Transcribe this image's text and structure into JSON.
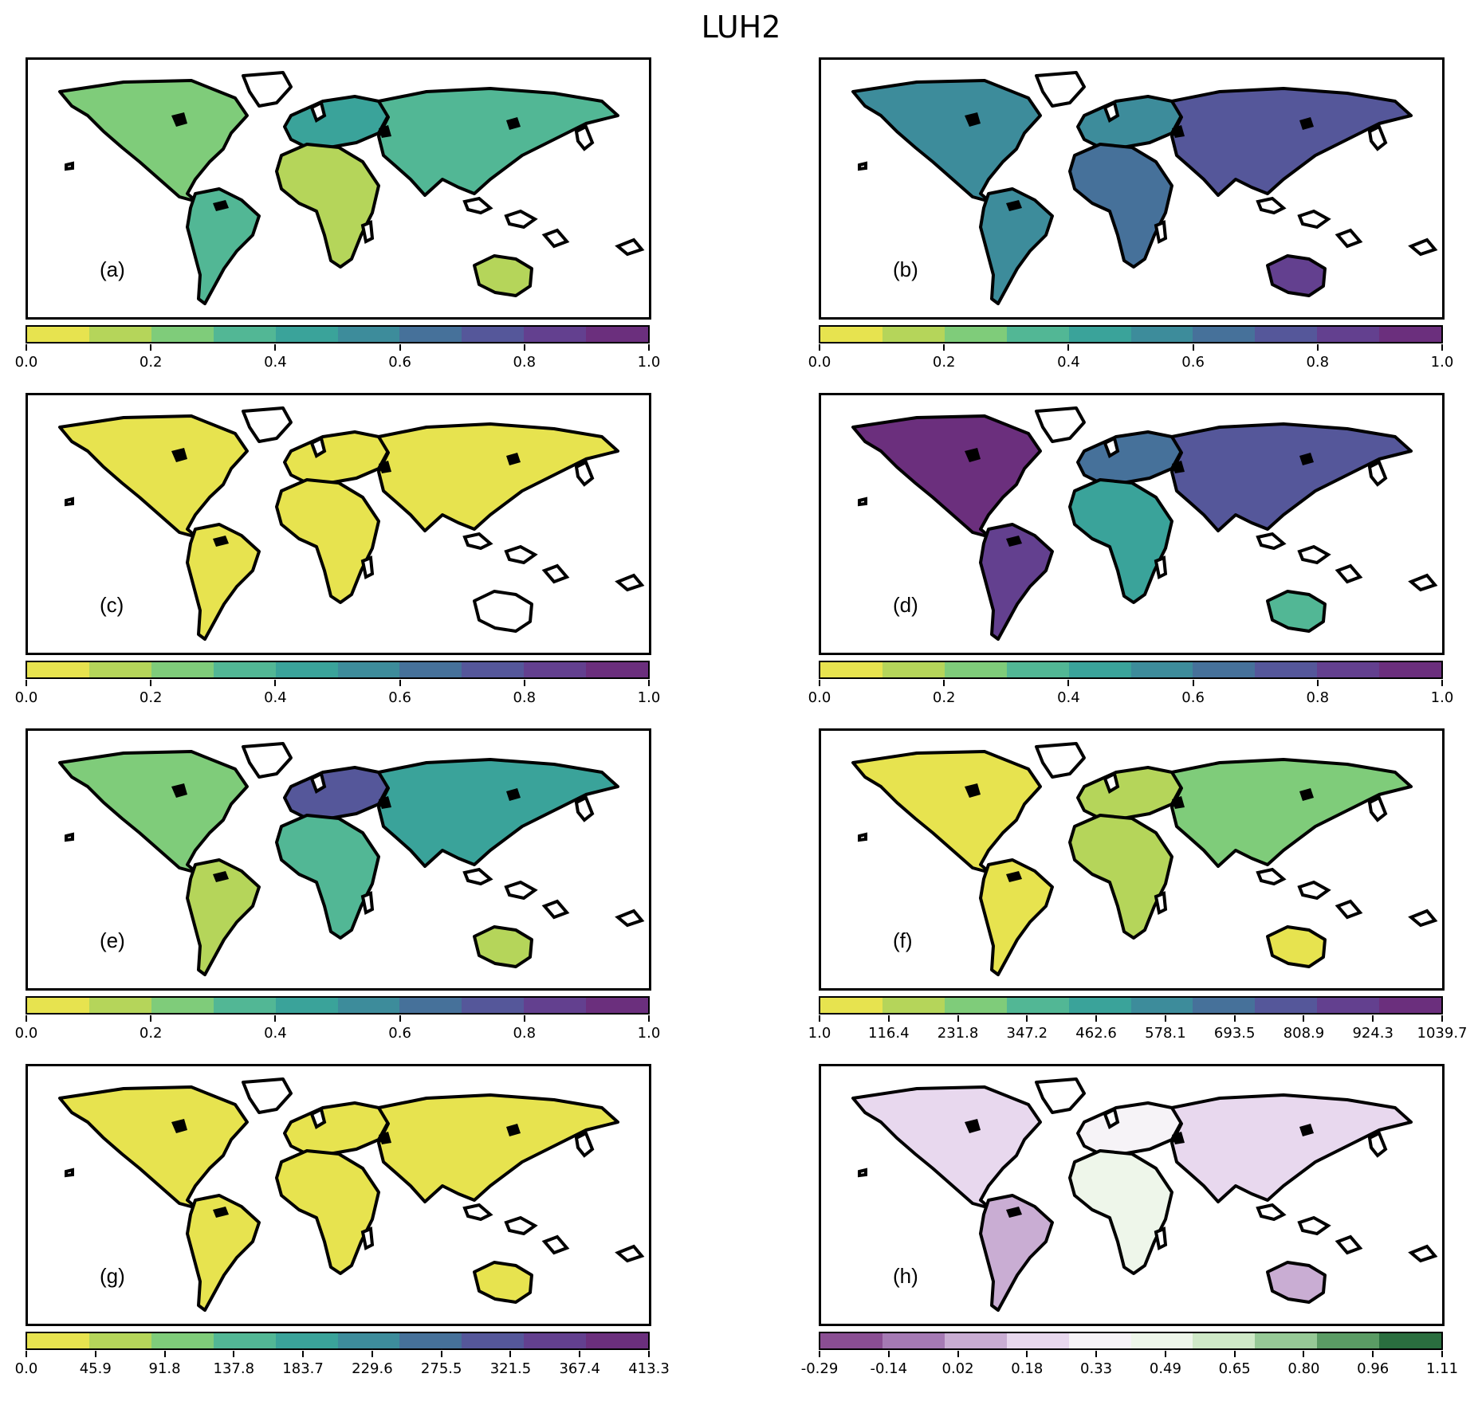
{
  "title": "LUH2",
  "palettes": {
    "viridis_r": [
      "#e7e34f",
      "#b5d55a",
      "#7fcc7a",
      "#52b795",
      "#3aa39a",
      "#3d8c9b",
      "#46719a",
      "#55579a",
      "#63408f",
      "#6b2f7d"
    ],
    "prgn": [
      "#8a4e93",
      "#a57ab4",
      "#c9add3",
      "#e8d8ee",
      "#f6f3f7",
      "#eef6ea",
      "#cfe9c7",
      "#96c996",
      "#5a9b64",
      "#2a6e3f"
    ]
  },
  "panels": [
    {
      "label": "(a)",
      "palette": "viridis_r",
      "ticks": [
        "0.0",
        "0.2",
        "0.4",
        "0.6",
        "0.8",
        "1.0"
      ],
      "tick_positions": [
        0,
        0.2,
        0.4,
        0.6,
        0.8,
        1.0
      ],
      "fill": {
        "NA": 2,
        "SA": 3,
        "EU": 4,
        "AF": 1,
        "AS": 3,
        "AU": 1
      }
    },
    {
      "label": "(b)",
      "palette": "viridis_r",
      "ticks": [
        "0.0",
        "0.2",
        "0.4",
        "0.6",
        "0.8",
        "1.0"
      ],
      "tick_positions": [
        0,
        0.2,
        0.4,
        0.6,
        0.8,
        1.0
      ],
      "fill": {
        "NA": 5,
        "SA": 5,
        "EU": 5,
        "AF": 6,
        "AS": 7,
        "AU": 8
      }
    },
    {
      "label": "(c)",
      "palette": "viridis_r",
      "ticks": [
        "0.0",
        "0.2",
        "0.4",
        "0.6",
        "0.8",
        "1.0"
      ],
      "tick_positions": [
        0,
        0.2,
        0.4,
        0.6,
        0.8,
        1.0
      ],
      "fill": {
        "NA": 0,
        "SA": 0,
        "EU": 0,
        "AF": 0,
        "AS": 0,
        "AU": -1
      }
    },
    {
      "label": "(d)",
      "palette": "viridis_r",
      "ticks": [
        "0.0",
        "0.2",
        "0.4",
        "0.6",
        "0.8",
        "1.0"
      ],
      "tick_positions": [
        0,
        0.2,
        0.4,
        0.6,
        0.8,
        1.0
      ],
      "fill": {
        "NA": 9,
        "SA": 8,
        "EU": 6,
        "AF": 4,
        "AS": 7,
        "AU": 3
      }
    },
    {
      "label": "(e)",
      "palette": "viridis_r",
      "ticks": [
        "0.0",
        "0.2",
        "0.4",
        "0.6",
        "0.8",
        "1.0"
      ],
      "tick_positions": [
        0,
        0.2,
        0.4,
        0.6,
        0.8,
        1.0
      ],
      "fill": {
        "NA": 2,
        "SA": 1,
        "EU": 7,
        "AF": 3,
        "AS": 4,
        "AU": 1
      }
    },
    {
      "label": "(f)",
      "palette": "viridis_r",
      "ticks": [
        "1.0",
        "116.4",
        "231.8",
        "347.2",
        "462.6",
        "578.1",
        "693.5",
        "808.9",
        "924.3",
        "1039.7"
      ],
      "tick_positions": [
        0,
        0.1111,
        0.2222,
        0.3333,
        0.4444,
        0.5556,
        0.6667,
        0.7778,
        0.8889,
        1.0
      ],
      "fill": {
        "NA": 0,
        "SA": 0,
        "EU": 1,
        "AF": 1,
        "AS": 2,
        "AU": 0
      }
    },
    {
      "label": "(g)",
      "palette": "viridis_r",
      "ticks": [
        "0.0",
        "45.9",
        "91.8",
        "137.8",
        "183.7",
        "229.6",
        "275.5",
        "321.5",
        "367.4",
        "413.3"
      ],
      "tick_positions": [
        0,
        0.1111,
        0.2222,
        0.3333,
        0.4444,
        0.5556,
        0.6667,
        0.7778,
        0.8889,
        1.0
      ],
      "fill": {
        "NA": 0,
        "SA": 0,
        "EU": 0,
        "AF": 0,
        "AS": 0,
        "AU": 0
      }
    },
    {
      "label": "(h)",
      "palette": "prgn",
      "ticks": [
        "-0.29",
        "-0.14",
        "0.02",
        "0.18",
        "0.33",
        "0.49",
        "0.65",
        "0.80",
        "0.96",
        "1.11"
      ],
      "tick_positions": [
        0,
        0.1111,
        0.2222,
        0.3333,
        0.4444,
        0.5556,
        0.6667,
        0.7778,
        0.8889,
        1.0
      ],
      "fill": {
        "NA": 3,
        "SA": 2,
        "EU": 4,
        "AF": 5,
        "AS": 3,
        "AU": 2
      }
    }
  ]
}
